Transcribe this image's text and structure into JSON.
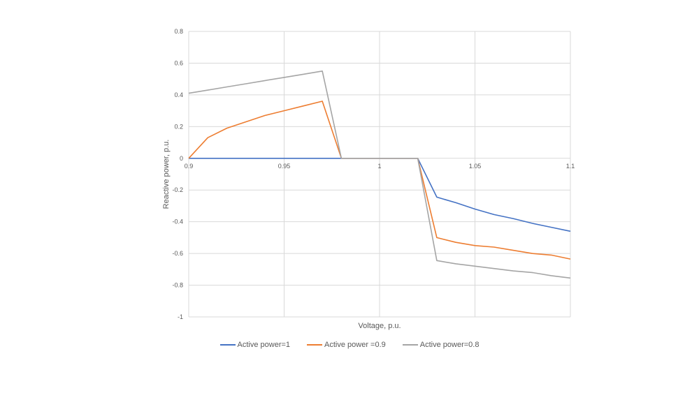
{
  "chart_data": {
    "type": "line",
    "title": "",
    "xlabel": "Voltage, p.u.",
    "ylabel": "Reactive power, p.u.",
    "xlim": [
      0.9,
      1.1
    ],
    "ylim": [
      -1,
      0.8
    ],
    "xticks": [
      0.9,
      0.95,
      1,
      1.05,
      1.1
    ],
    "xtick_labels": [
      "0.9",
      "0.95",
      "1",
      "1.05",
      "1.1"
    ],
    "yticks": [
      0.8,
      0.6,
      0.4,
      0.2,
      0,
      -0.2,
      -0.4,
      -0.6,
      -0.8,
      -1
    ],
    "ytick_labels": [
      "0.8",
      "0.6",
      "0.4",
      "0.2",
      "0",
      "-0.2",
      "-0.4",
      "-0.6",
      "-0.8",
      "-1"
    ],
    "grid": true,
    "legend_position": "bottom",
    "x": [
      0.9,
      0.91,
      0.92,
      0.93,
      0.94,
      0.95,
      0.96,
      0.97,
      0.98,
      0.99,
      1.0,
      1.01,
      1.02,
      1.03,
      1.04,
      1.05,
      1.06,
      1.07,
      1.08,
      1.09,
      1.1
    ],
    "series": [
      {
        "name": "Active power=1",
        "color": "#4472C4",
        "values": [
          0,
          0,
          0,
          0,
          0,
          0,
          0,
          0,
          0,
          0,
          0,
          0,
          0,
          -0.245,
          -0.28,
          -0.32,
          -0.355,
          -0.38,
          -0.41,
          -0.435,
          -0.46
        ]
      },
      {
        "name": "Active power =0.9",
        "color": "#ED7D31",
        "values": [
          0,
          0.13,
          0.19,
          0.23,
          0.27,
          0.3,
          0.33,
          0.36,
          0,
          0,
          0,
          0,
          0,
          -0.5,
          -0.53,
          -0.55,
          -0.56,
          -0.58,
          -0.6,
          -0.61,
          -0.635
        ]
      },
      {
        "name": "Active power=0.8",
        "color": "#A5A5A5",
        "values": [
          0.41,
          0.43,
          0.45,
          0.47,
          0.49,
          0.51,
          0.53,
          0.55,
          0,
          0,
          0,
          0,
          0,
          -0.645,
          -0.665,
          -0.68,
          -0.695,
          -0.71,
          -0.72,
          -0.74,
          -0.755
        ]
      }
    ]
  }
}
